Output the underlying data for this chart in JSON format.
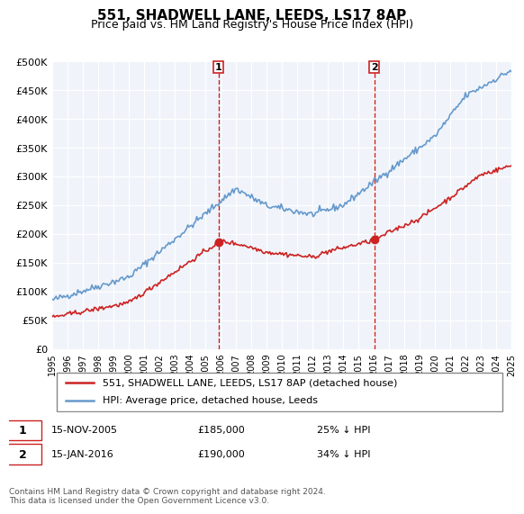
{
  "title": "551, SHADWELL LANE, LEEDS, LS17 8AP",
  "subtitle": "Price paid vs. HM Land Registry's House Price Index (HPI)",
  "hpi_label": "HPI: Average price, detached house, Leeds",
  "property_label": "551, SHADWELL LANE, LEEDS, LS17 8AP (detached house)",
  "footnote": "Contains HM Land Registry data © Crown copyright and database right 2024.\nThis data is licensed under the Open Government Licence v3.0.",
  "ylim": [
    0,
    500000
  ],
  "yticks": [
    0,
    50000,
    100000,
    150000,
    200000,
    250000,
    300000,
    350000,
    400000,
    450000,
    500000
  ],
  "ytick_labels": [
    "£0",
    "£50K",
    "£100K",
    "£150K",
    "£200K",
    "£250K",
    "£300K",
    "£350K",
    "£400K",
    "£450K",
    "£500K"
  ],
  "hpi_color": "#6699cc",
  "property_color": "#cc2222",
  "marker1_date": "15-NOV-2005",
  "marker1_price": 185000,
  "marker1_pct": "25% ↓ HPI",
  "marker1_x": 2005.87,
  "marker2_date": "15-JAN-2016",
  "marker2_price": 190000,
  "marker2_pct": "34% ↓ HPI",
  "marker2_x": 2016.04,
  "bg_color": "#f0f4fa",
  "plot_bg_color": "#f0f4fa"
}
